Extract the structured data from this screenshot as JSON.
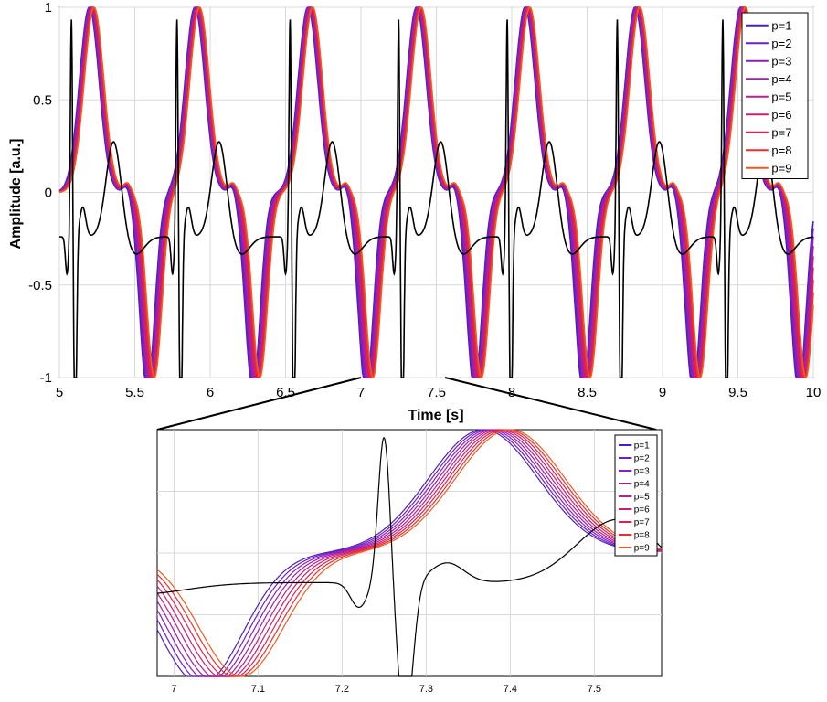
{
  "chart_data": [
    {
      "type": "line",
      "xlabel": "Time [s]",
      "ylabel": "Amplitude [a.u.]",
      "xlim": [
        5,
        10
      ],
      "ylim": [
        -1,
        1
      ],
      "xticks": [
        5,
        5.5,
        6,
        6.5,
        7,
        7.5,
        8,
        8.5,
        9,
        9.5,
        10
      ],
      "xtick_labels": [
        "5",
        "5.5",
        "6",
        "6.5",
        "7",
        "7.5",
        "8",
        "8.5",
        "9",
        "9.5",
        "10"
      ],
      "yticks": [
        -1,
        -0.5,
        0,
        0.5,
        1
      ],
      "ytick_labels": [
        "-1",
        "-0.5",
        "0",
        "0.5",
        "1"
      ],
      "grid": true,
      "legend_position": "top-right",
      "legend": [
        "p=1",
        "p=2",
        "p=3",
        "p=4",
        "p=5",
        "p=6",
        "p=7",
        "p=8",
        "p=9"
      ],
      "series_colors": [
        "#4b1fbf",
        "#6a1fc8",
        "#8a1fc0",
        "#a01fa8",
        "#b81f90",
        "#cc1f70",
        "#de2050",
        "#e83030",
        "#f05a20"
      ],
      "reference_color": "#000000",
      "beat_times": [
        5.08,
        5.78,
        6.53,
        7.25,
        7.97,
        8.7,
        9.4
      ]
    },
    {
      "type": "line",
      "xlim": [
        6.98,
        7.58
      ],
      "ylim": [
        -1,
        1
      ],
      "xticks": [
        7,
        7.1,
        7.2,
        7.3,
        7.4,
        7.5
      ],
      "xtick_labels": [
        "7",
        "7.1",
        "7.2",
        "7.3",
        "7.4",
        "7.5"
      ],
      "grid": true,
      "legend_position": "top-right",
      "legend": [
        "p=1",
        "p=2",
        "p=3",
        "p=4",
        "p=5",
        "p=6",
        "p=7",
        "p=8",
        "p=9"
      ],
      "zoom_range": [
        7,
        7.55
      ]
    }
  ]
}
